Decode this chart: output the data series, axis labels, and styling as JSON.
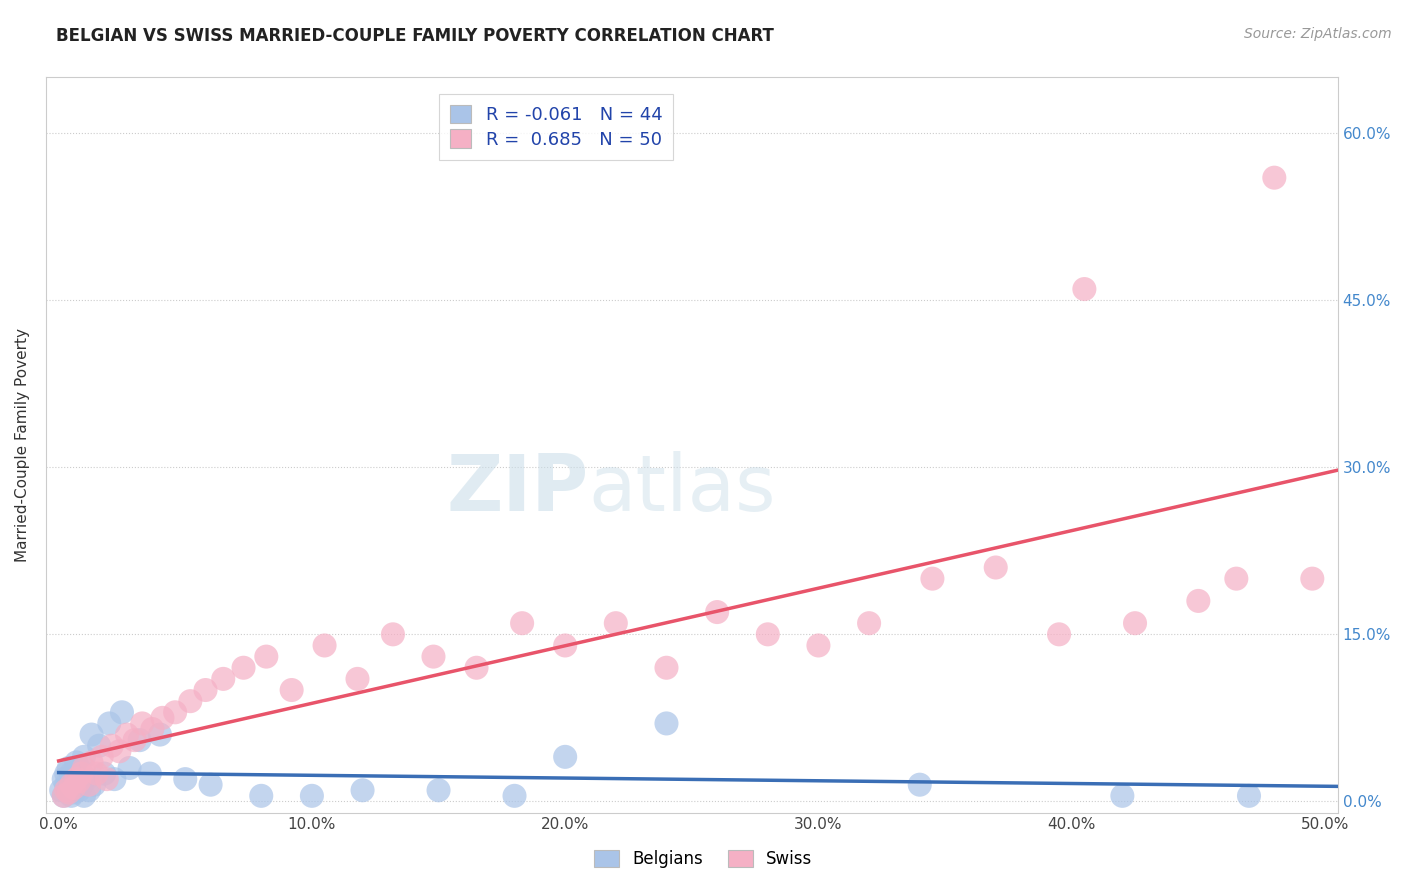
{
  "title": "BELGIAN VS SWISS MARRIED-COUPLE FAMILY POVERTY CORRELATION CHART",
  "source": "Source: ZipAtlas.com",
  "ylabel": "Married-Couple Family Poverty",
  "xlim": [
    -0.005,
    0.505
  ],
  "ylim": [
    -0.01,
    0.65
  ],
  "xticks": [
    0.0,
    0.1,
    0.2,
    0.3,
    0.4,
    0.5
  ],
  "xtick_labels": [
    "0.0%",
    "10.0%",
    "20.0%",
    "30.0%",
    "40.0%",
    "50.0%"
  ],
  "ytick_labels": [
    "",
    "15.0%",
    "30.0%",
    "45.0%",
    "60.0%"
  ],
  "yticks": [
    0.0,
    0.15,
    0.3,
    0.45,
    0.6
  ],
  "right_ytick_labels": [
    "60.0%",
    "45.0%",
    "30.0%",
    "15.0%",
    "0.0%"
  ],
  "belgians_R": "-0.061",
  "belgians_N": "44",
  "swiss_R": "0.685",
  "swiss_N": "50",
  "belgian_color": "#aac4e8",
  "swiss_color": "#f5b0c5",
  "belgian_line_color": "#3a6eb5",
  "swiss_line_color": "#e8546a",
  "watermark_zip": "ZIP",
  "watermark_atlas": "atlas",
  "legend_label1": "Belgians",
  "legend_label2": "Swiss",
  "belgians_x": [
    0.001,
    0.002,
    0.002,
    0.003,
    0.003,
    0.004,
    0.004,
    0.005,
    0.005,
    0.006,
    0.006,
    0.007,
    0.007,
    0.008,
    0.008,
    0.009,
    0.009,
    0.01,
    0.01,
    0.011,
    0.012,
    0.013,
    0.014,
    0.016,
    0.018,
    0.02,
    0.022,
    0.025,
    0.028,
    0.032,
    0.036,
    0.04,
    0.05,
    0.06,
    0.08,
    0.1,
    0.12,
    0.15,
    0.18,
    0.2,
    0.24,
    0.34,
    0.42,
    0.47
  ],
  "belgians_y": [
    0.01,
    0.005,
    0.02,
    0.015,
    0.025,
    0.01,
    0.03,
    0.005,
    0.025,
    0.008,
    0.02,
    0.012,
    0.035,
    0.01,
    0.03,
    0.015,
    0.025,
    0.005,
    0.04,
    0.02,
    0.01,
    0.06,
    0.015,
    0.05,
    0.025,
    0.07,
    0.02,
    0.08,
    0.03,
    0.055,
    0.025,
    0.06,
    0.02,
    0.015,
    0.005,
    0.005,
    0.01,
    0.01,
    0.005,
    0.04,
    0.07,
    0.015,
    0.005,
    0.005
  ],
  "swiss_x": [
    0.002,
    0.003,
    0.004,
    0.005,
    0.006,
    0.007,
    0.008,
    0.009,
    0.01,
    0.012,
    0.013,
    0.015,
    0.017,
    0.019,
    0.021,
    0.024,
    0.027,
    0.03,
    0.033,
    0.037,
    0.041,
    0.046,
    0.052,
    0.058,
    0.065,
    0.073,
    0.082,
    0.092,
    0.105,
    0.118,
    0.132,
    0.148,
    0.165,
    0.183,
    0.2,
    0.22,
    0.24,
    0.26,
    0.28,
    0.3,
    0.32,
    0.345,
    0.37,
    0.395,
    0.405,
    0.425,
    0.45,
    0.465,
    0.48,
    0.495
  ],
  "swiss_y": [
    0.005,
    0.01,
    0.008,
    0.015,
    0.012,
    0.02,
    0.018,
    0.025,
    0.03,
    0.015,
    0.035,
    0.025,
    0.04,
    0.02,
    0.05,
    0.045,
    0.06,
    0.055,
    0.07,
    0.065,
    0.075,
    0.08,
    0.09,
    0.1,
    0.11,
    0.12,
    0.13,
    0.1,
    0.14,
    0.11,
    0.15,
    0.13,
    0.12,
    0.16,
    0.14,
    0.16,
    0.12,
    0.17,
    0.15,
    0.14,
    0.16,
    0.2,
    0.21,
    0.15,
    0.46,
    0.16,
    0.18,
    0.2,
    0.56,
    0.2
  ]
}
